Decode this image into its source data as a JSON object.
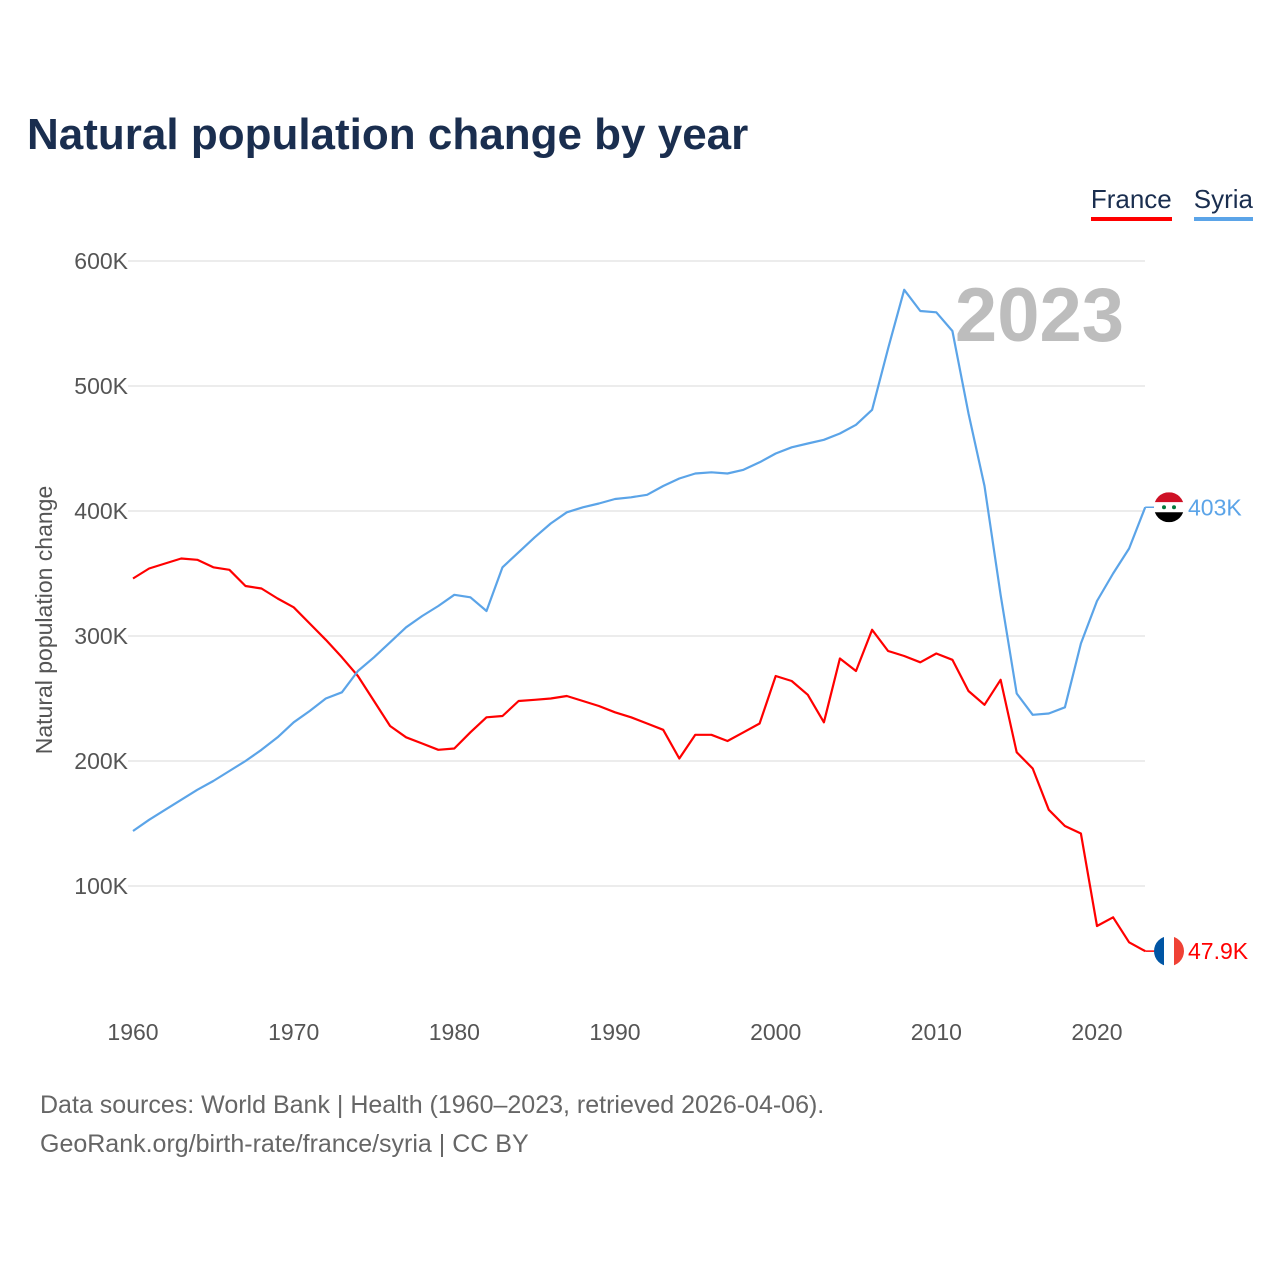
{
  "chart_data": {
    "type": "line",
    "title": "Natural population change by year",
    "ylabel": "Natural population change",
    "xlabel": "",
    "ylim": [
      0,
      600000
    ],
    "xlim": [
      1960,
      2023
    ],
    "yticks": [
      100000,
      200000,
      300000,
      400000,
      500000,
      600000
    ],
    "ytick_labels": [
      "100K",
      "200K",
      "300K",
      "400K",
      "500K",
      "600K"
    ],
    "xticks": [
      1960,
      1970,
      1980,
      1990,
      2000,
      2010,
      2020
    ],
    "xtick_labels": [
      "1960",
      "1970",
      "1980",
      "1990",
      "2000",
      "2010",
      "2020"
    ],
    "year_label": "2023",
    "legend_position": "top-right",
    "grid": true,
    "x": [
      1960,
      1961,
      1962,
      1963,
      1964,
      1965,
      1966,
      1967,
      1968,
      1969,
      1970,
      1971,
      1972,
      1973,
      1974,
      1975,
      1976,
      1977,
      1978,
      1979,
      1980,
      1981,
      1982,
      1983,
      1984,
      1985,
      1986,
      1987,
      1988,
      1989,
      1990,
      1991,
      1992,
      1993,
      1994,
      1995,
      1996,
      1997,
      1998,
      1999,
      2000,
      2001,
      2002,
      2003,
      2004,
      2005,
      2006,
      2007,
      2008,
      2009,
      2010,
      2011,
      2012,
      2013,
      2014,
      2015,
      2016,
      2017,
      2018,
      2019,
      2020,
      2021,
      2022,
      2023
    ],
    "series": [
      {
        "name": "France",
        "color": "#ff0000",
        "end_label": "47.9K",
        "values": [
          346,
          354,
          358,
          362,
          361,
          355,
          353,
          340,
          338,
          330,
          323,
          310,
          297,
          283,
          268,
          248,
          228,
          219,
          214,
          209,
          210,
          223,
          235,
          236,
          248,
          249,
          250,
          252,
          248,
          244,
          239,
          235,
          230,
          225,
          202,
          221,
          221,
          216,
          223,
          230,
          268,
          264,
          253,
          231,
          282,
          272,
          305,
          288,
          284,
          279,
          286,
          281,
          256,
          245,
          265,
          207,
          194,
          161,
          148,
          142,
          68,
          75,
          55,
          47.9
        ]
      },
      {
        "name": "Syria",
        "color": "#5ba4e8",
        "end_label": "403K",
        "values": [
          144,
          153,
          161,
          169,
          177,
          184,
          192,
          200,
          209,
          219,
          231,
          240,
          250,
          255,
          272,
          283,
          295,
          307,
          316,
          324,
          333,
          331,
          320,
          355,
          367,
          379,
          390,
          399,
          403,
          406,
          409.6,
          411,
          413,
          420,
          426,
          430,
          431,
          430,
          433,
          439,
          446,
          451,
          454,
          457,
          462,
          469,
          481,
          530,
          577,
          560,
          559,
          544,
          478,
          420,
          333,
          254,
          237,
          238,
          243,
          294,
          328,
          350,
          370,
          403
        ]
      }
    ],
    "value_unit_multiplier": 1000
  },
  "footer": {
    "line1": "Data sources: World Bank | Health (1960–2023, retrieved 2026-04-06).",
    "line2": "GeoRank.org/birth-rate/france/syria | CC BY"
  }
}
